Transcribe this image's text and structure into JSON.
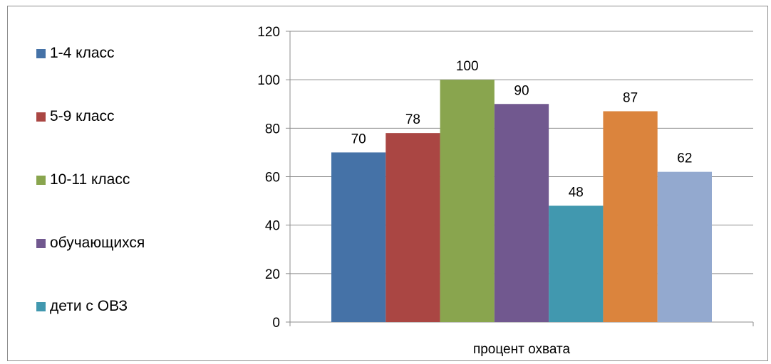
{
  "chart_data": {
    "type": "bar",
    "categories": [
      "процент охвата"
    ],
    "series": [
      {
        "name": "1-4 класс",
        "values": [
          70
        ],
        "color": "#4572a7"
      },
      {
        "name": "5-9 класс",
        "values": [
          78
        ],
        "color": "#aa4643"
      },
      {
        "name": "10-11 класс",
        "values": [
          100
        ],
        "color": "#89a54e"
      },
      {
        "name": "обучающихся",
        "values": [
          90
        ],
        "color": "#71588f"
      },
      {
        "name": "дети с ОВЗ",
        "values": [
          48
        ],
        "color": "#4198af"
      },
      {
        "name": "",
        "values": [
          87
        ],
        "color": "#db843d"
      },
      {
        "name": "",
        "values": [
          62
        ],
        "color": "#93a9cf"
      }
    ],
    "ylim": [
      0,
      120
    ],
    "yticks": [
      "0",
      "20",
      "40",
      "60",
      "80",
      "100",
      "120"
    ],
    "grid": true,
    "legend_position": "left",
    "data_labels": true
  }
}
